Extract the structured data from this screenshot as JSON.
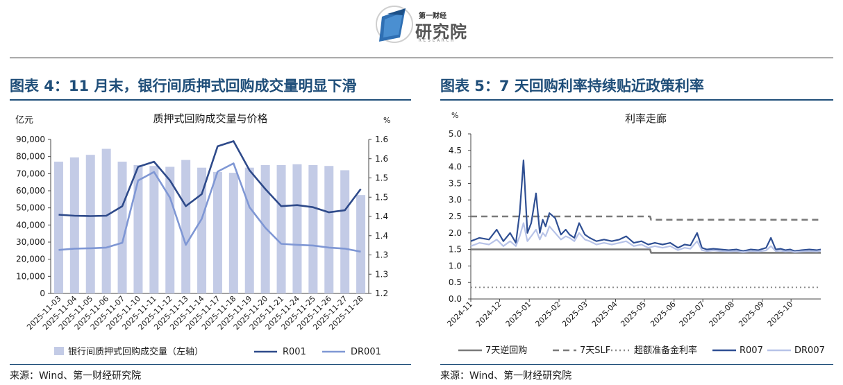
{
  "header": {
    "logo_small": "第一财经",
    "logo_big": "研究院",
    "logo_en": "RESEARCH"
  },
  "left": {
    "fig_title": "图表 4：11 月末，银行间质押式回购成交量明显下滑",
    "source": "来源：Wind、第一财经研究院"
  },
  "right": {
    "fig_title": "图表 5：7 天回购利率持续贴近政策利率",
    "source": "来源：Wind、第一财经研究院"
  },
  "colors": {
    "title_blue": "#1f4e79",
    "bar": "#c3cbe6",
    "r001": "#2e4a8a",
    "dr001": "#7f97d4",
    "reverse_repo": "#7a7a7a",
    "slf": "#7a7a7a",
    "excess_reserve": "#8c8c8c",
    "r007": "#2f4f93",
    "dr007": "#b7c3e8"
  },
  "chart_data": [
    {
      "type": "bar",
      "title": "质押式回购成交量与价格",
      "y_left_unit": "亿元",
      "y_right_unit": "%",
      "ylim_left": [
        0,
        90000
      ],
      "ylim_right": [
        1.2,
        1.65
      ],
      "y_left_ticks": [
        "0",
        "10,000",
        "20,000",
        "30,000",
        "40,000",
        "50,000",
        "60,000",
        "70,000",
        "80,000",
        "90,000"
      ],
      "y_right_ticks": [
        "1.2",
        "1.3",
        "1.3",
        "1.4",
        "1.4",
        "1.5",
        "1.5",
        "1.6",
        "1.6"
      ],
      "categories": [
        "2025-11-03",
        "2025-11-04",
        "2025-11-05",
        "2025-11-06",
        "2025-11-07",
        "2025-11-10",
        "2025-11-11",
        "2025-11-12",
        "2025-11-13",
        "2025-11-14",
        "2025-11-17",
        "2025-11-18",
        "2025-11-19",
        "2025-11-20",
        "2025-11-21",
        "2025-11-24",
        "2025-11-25",
        "2025-11-26",
        "2025-11-27",
        "2025-11-28"
      ],
      "legend": [
        "银行间质押式回购成交量（左轴）",
        "R001",
        "DR001"
      ],
      "series": [
        {
          "name": "银行间质押式回购成交量（左轴）",
          "axis": "left",
          "kind": "bar",
          "values": [
            77000,
            79500,
            81000,
            84500,
            77000,
            75000,
            74500,
            74000,
            78000,
            73500,
            71000,
            70500,
            73500,
            75000,
            75000,
            75500,
            75000,
            74500,
            72000,
            57500
          ]
        },
        {
          "name": "R001",
          "axis": "right",
          "kind": "line",
          "values": [
            1.43,
            1.427,
            1.426,
            1.427,
            1.455,
            1.57,
            1.585,
            1.53,
            1.455,
            1.49,
            1.63,
            1.645,
            1.56,
            1.505,
            1.455,
            1.458,
            1.452,
            1.437,
            1.443,
            1.505
          ]
        },
        {
          "name": "DR001",
          "axis": "right",
          "kind": "line",
          "values": [
            1.327,
            1.331,
            1.332,
            1.334,
            1.348,
            1.53,
            1.555,
            1.48,
            1.342,
            1.418,
            1.556,
            1.58,
            1.452,
            1.392,
            1.345,
            1.342,
            1.34,
            1.334,
            1.331,
            1.322
          ]
        }
      ]
    },
    {
      "type": "line",
      "title": "利率走廊",
      "y_unit": "%",
      "ylim": [
        0,
        5.0
      ],
      "y_ticks": [
        "0.0",
        "0.5",
        "1.0",
        "1.5",
        "2.0",
        "2.5",
        "3.0",
        "3.5",
        "4.0",
        "4.5",
        "5.0"
      ],
      "x_range": [
        "2024-11-01",
        "2025-11-01"
      ],
      "x_ticks": [
        "2024-11",
        "2024-12",
        "2025-01",
        "2025-02",
        "2025-03",
        "2025-04",
        "2025-05",
        "2025-06",
        "2025-07",
        "2025-08",
        "2025-09",
        "2025-10"
      ],
      "legend": [
        "7天逆回购",
        "7天SLF",
        "超额准备金利率",
        "R007",
        "DR007"
      ],
      "series": [
        {
          "name": "7天逆回购",
          "style": "solid",
          "x": [
            "2024-11-01",
            "2025-05-07",
            "2025-05-08",
            "2025-11-01"
          ],
          "y": [
            1.5,
            1.5,
            1.4,
            1.4
          ]
        },
        {
          "name": "7天SLF",
          "style": "dashed",
          "x": [
            "2024-11-01",
            "2025-05-07",
            "2025-05-08",
            "2025-11-01"
          ],
          "y": [
            2.5,
            2.5,
            2.4,
            2.4
          ]
        },
        {
          "name": "超额准备金利率",
          "style": "dotted",
          "x": [
            "2024-11-01",
            "2025-11-01"
          ],
          "y": [
            0.35,
            0.35
          ]
        },
        {
          "name": "R007",
          "style": "solid",
          "x": [
            "2024-11-01",
            "2024-11-10",
            "2024-11-20",
            "2024-11-28",
            "2024-12-05",
            "2024-12-12",
            "2024-12-18",
            "2024-12-22",
            "2024-12-26",
            "2024-12-30",
            "2025-01-03",
            "2025-01-08",
            "2025-01-12",
            "2025-01-15",
            "2025-01-18",
            "2025-01-22",
            "2025-01-28",
            "2025-02-03",
            "2025-02-08",
            "2025-02-12",
            "2025-02-17",
            "2025-02-22",
            "2025-02-28",
            "2025-03-05",
            "2025-03-12",
            "2025-03-20",
            "2025-03-28",
            "2025-04-05",
            "2025-04-12",
            "2025-04-20",
            "2025-04-28",
            "2025-05-05",
            "2025-05-12",
            "2025-05-20",
            "2025-05-28",
            "2025-06-05",
            "2025-06-12",
            "2025-06-18",
            "2025-06-25",
            "2025-06-30",
            "2025-07-05",
            "2025-07-12",
            "2025-07-20",
            "2025-07-28",
            "2025-08-05",
            "2025-08-12",
            "2025-08-20",
            "2025-08-28",
            "2025-09-05",
            "2025-09-10",
            "2025-09-15",
            "2025-09-20",
            "2025-09-25",
            "2025-09-30",
            "2025-10-05",
            "2025-10-12",
            "2025-10-20",
            "2025-10-28",
            "2025-11-01"
          ],
          "y": [
            1.75,
            1.85,
            1.8,
            2.1,
            1.75,
            2.0,
            1.7,
            2.6,
            4.2,
            2.0,
            2.3,
            3.2,
            2.0,
            2.4,
            2.2,
            2.6,
            2.45,
            1.95,
            2.1,
            1.95,
            1.85,
            2.3,
            1.95,
            1.85,
            1.75,
            1.8,
            1.75,
            1.8,
            1.9,
            1.7,
            1.75,
            1.65,
            1.7,
            1.65,
            1.7,
            1.55,
            1.65,
            1.62,
            2.0,
            1.55,
            1.5,
            1.52,
            1.5,
            1.48,
            1.5,
            1.45,
            1.5,
            1.48,
            1.55,
            1.85,
            1.5,
            1.52,
            1.48,
            1.5,
            1.45,
            1.48,
            1.5,
            1.48,
            1.5
          ]
        },
        {
          "name": "DR007",
          "style": "solid",
          "x": [
            "2024-11-01",
            "2024-11-10",
            "2024-11-20",
            "2024-11-28",
            "2024-12-05",
            "2024-12-12",
            "2024-12-18",
            "2024-12-22",
            "2024-12-26",
            "2024-12-30",
            "2025-01-03",
            "2025-01-08",
            "2025-01-12",
            "2025-01-15",
            "2025-01-18",
            "2025-01-22",
            "2025-01-28",
            "2025-02-03",
            "2025-02-08",
            "2025-02-12",
            "2025-02-17",
            "2025-02-22",
            "2025-02-28",
            "2025-03-05",
            "2025-03-12",
            "2025-03-20",
            "2025-03-28",
            "2025-04-05",
            "2025-04-12",
            "2025-04-20",
            "2025-04-28",
            "2025-05-05",
            "2025-05-12",
            "2025-05-20",
            "2025-05-28",
            "2025-06-05",
            "2025-06-12",
            "2025-06-18",
            "2025-06-25",
            "2025-06-30",
            "2025-07-05",
            "2025-07-12",
            "2025-07-20",
            "2025-07-28",
            "2025-08-05",
            "2025-08-12",
            "2025-08-20",
            "2025-08-28",
            "2025-09-05",
            "2025-09-10",
            "2025-09-15",
            "2025-09-20",
            "2025-09-25",
            "2025-09-30",
            "2025-10-05",
            "2025-10-12",
            "2025-10-20",
            "2025-10-28",
            "2025-11-01"
          ],
          "y": [
            1.6,
            1.7,
            1.65,
            1.8,
            1.6,
            1.75,
            1.6,
            1.9,
            2.3,
            1.75,
            1.9,
            2.1,
            1.8,
            2.0,
            1.9,
            2.2,
            2.0,
            1.8,
            1.9,
            1.85,
            1.75,
            2.0,
            1.8,
            1.75,
            1.65,
            1.7,
            1.65,
            1.7,
            1.75,
            1.6,
            1.65,
            1.55,
            1.6,
            1.55,
            1.6,
            1.48,
            1.55,
            1.52,
            1.75,
            1.48,
            1.45,
            1.47,
            1.45,
            1.44,
            1.45,
            1.42,
            1.45,
            1.44,
            1.47,
            1.6,
            1.45,
            1.46,
            1.44,
            1.45,
            1.42,
            1.44,
            1.45,
            1.44,
            1.46
          ]
        }
      ]
    }
  ]
}
